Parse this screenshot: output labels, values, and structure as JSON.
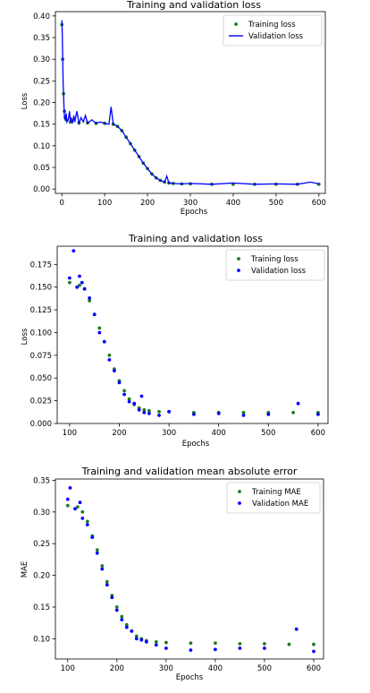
{
  "colors": {
    "training": "#1f7a1f",
    "validation": "#0000ff",
    "axes": "#000000",
    "legend_border": "#cccccc"
  },
  "chart_data": [
    {
      "type": "line",
      "title": "Training and validation loss",
      "xlabel": "Epochs",
      "ylabel": "Loss",
      "xlim": [
        -15,
        615
      ],
      "ylim": [
        -0.01,
        0.41
      ],
      "xticks": [
        0,
        100,
        200,
        300,
        400,
        500,
        600
      ],
      "yticks": [
        0.0,
        0.05,
        0.1,
        0.15,
        0.2,
        0.25,
        0.3,
        0.35,
        0.4
      ],
      "ytick_labels": [
        "0.00",
        "0.05",
        "0.10",
        "0.15",
        "0.20",
        "0.25",
        "0.30",
        "0.35",
        "0.40"
      ],
      "legend": "top-right",
      "series": [
        {
          "name": "Training loss",
          "marker": "dot",
          "color": "#1f7a1f",
          "x": [
            0,
            2,
            4,
            6,
            8,
            10,
            20,
            40,
            60,
            80,
            100,
            120,
            130,
            140,
            150,
            160,
            170,
            180,
            190,
            200,
            210,
            220,
            230,
            240,
            250,
            260,
            280,
            300,
            350,
            400,
            450,
            500,
            550,
            600
          ],
          "y": [
            0.38,
            0.3,
            0.22,
            0.18,
            0.165,
            0.16,
            0.155,
            0.153,
            0.153,
            0.152,
            0.152,
            0.15,
            0.145,
            0.135,
            0.12,
            0.105,
            0.09,
            0.075,
            0.06,
            0.047,
            0.035,
            0.026,
            0.02,
            0.016,
            0.014,
            0.013,
            0.012,
            0.012,
            0.011,
            0.011,
            0.011,
            0.011,
            0.011,
            0.011
          ]
        },
        {
          "name": "Validation loss",
          "marker": "line",
          "color": "#0000ff",
          "x": [
            0,
            1,
            2,
            3,
            4,
            5,
            6,
            8,
            10,
            12,
            15,
            18,
            20,
            22,
            25,
            28,
            30,
            35,
            40,
            45,
            50,
            55,
            60,
            70,
            80,
            90,
            100,
            110,
            115,
            120,
            130,
            140,
            150,
            160,
            170,
            180,
            190,
            200,
            210,
            220,
            230,
            240,
            245,
            250,
            260,
            280,
            300,
            350,
            400,
            450,
            500,
            550,
            580,
            600
          ],
          "y": [
            0.39,
            0.36,
            0.31,
            0.25,
            0.22,
            0.19,
            0.17,
            0.16,
            0.175,
            0.155,
            0.16,
            0.18,
            0.155,
            0.165,
            0.152,
            0.17,
            0.155,
            0.18,
            0.152,
            0.165,
            0.155,
            0.17,
            0.152,
            0.16,
            0.152,
            0.155,
            0.152,
            0.15,
            0.19,
            0.15,
            0.145,
            0.135,
            0.12,
            0.105,
            0.09,
            0.075,
            0.06,
            0.047,
            0.035,
            0.026,
            0.02,
            0.016,
            0.03,
            0.014,
            0.013,
            0.012,
            0.013,
            0.011,
            0.014,
            0.011,
            0.012,
            0.011,
            0.016,
            0.012
          ]
        }
      ]
    },
    {
      "type": "scatter",
      "title": "Training and validation loss",
      "xlabel": "Epochs",
      "ylabel": "Loss",
      "xlim": [
        75,
        620
      ],
      "ylim": [
        0.0,
        0.195
      ],
      "xticks": [
        100,
        200,
        300,
        400,
        500,
        600
      ],
      "yticks": [
        0.0,
        0.025,
        0.05,
        0.075,
        0.1,
        0.125,
        0.15,
        0.175
      ],
      "ytick_labels": [
        "0.000",
        "0.025",
        "0.050",
        "0.075",
        "0.100",
        "0.125",
        "0.150",
        "0.175"
      ],
      "legend": "top-right",
      "series": [
        {
          "name": "Training loss",
          "color": "#1f7a1f",
          "x": [
            100,
            120,
            130,
            140,
            150,
            160,
            170,
            180,
            190,
            200,
            210,
            220,
            230,
            240,
            250,
            260,
            280,
            300,
            350,
            400,
            450,
            500,
            550,
            600
          ],
          "y": [
            0.155,
            0.152,
            0.148,
            0.135,
            0.12,
            0.105,
            0.09,
            0.075,
            0.06,
            0.047,
            0.036,
            0.027,
            0.021,
            0.017,
            0.015,
            0.014,
            0.013,
            0.013,
            0.012,
            0.012,
            0.012,
            0.012,
            0.012,
            0.012
          ]
        },
        {
          "name": "Validation loss",
          "color": "#0000ff",
          "x": [
            100,
            108,
            115,
            120,
            125,
            130,
            140,
            150,
            160,
            170,
            180,
            190,
            200,
            210,
            220,
            230,
            240,
            245,
            250,
            260,
            280,
            300,
            350,
            400,
            450,
            500,
            560,
            600
          ],
          "y": [
            0.16,
            0.19,
            0.15,
            0.162,
            0.155,
            0.148,
            0.138,
            0.12,
            0.1,
            0.09,
            0.07,
            0.058,
            0.045,
            0.032,
            0.024,
            0.022,
            0.015,
            0.03,
            0.012,
            0.011,
            0.009,
            0.013,
            0.01,
            0.011,
            0.009,
            0.01,
            0.022,
            0.01
          ]
        }
      ]
    },
    {
      "type": "scatter",
      "title": "Training and validation mean absolute error",
      "xlabel": "Epochs",
      "ylabel": "MAE",
      "xlim": [
        75,
        620
      ],
      "ylim": [
        0.068,
        0.352
      ],
      "xticks": [
        100,
        200,
        300,
        400,
        500,
        600
      ],
      "yticks": [
        0.1,
        0.15,
        0.2,
        0.25,
        0.3,
        0.35
      ],
      "ytick_labels": [
        "0.10",
        "0.15",
        "0.20",
        "0.25",
        "0.30",
        "0.35"
      ],
      "legend": "top-right",
      "series": [
        {
          "name": "Training MAE",
          "color": "#1f7a1f",
          "x": [
            100,
            120,
            130,
            140,
            150,
            160,
            170,
            180,
            190,
            200,
            210,
            220,
            230,
            240,
            250,
            260,
            280,
            300,
            350,
            400,
            450,
            500,
            550,
            600
          ],
          "y": [
            0.31,
            0.308,
            0.3,
            0.285,
            0.262,
            0.24,
            0.215,
            0.19,
            0.168,
            0.15,
            0.135,
            0.122,
            0.112,
            0.104,
            0.1,
            0.097,
            0.095,
            0.094,
            0.093,
            0.093,
            0.092,
            0.092,
            0.091,
            0.091
          ]
        },
        {
          "name": "Validation MAE",
          "color": "#0000ff",
          "x": [
            100,
            105,
            115,
            125,
            130,
            140,
            150,
            160,
            170,
            180,
            190,
            200,
            210,
            220,
            230,
            240,
            250,
            260,
            280,
            300,
            350,
            400,
            450,
            500,
            565,
            600
          ],
          "y": [
            0.32,
            0.338,
            0.305,
            0.315,
            0.29,
            0.28,
            0.26,
            0.235,
            0.21,
            0.185,
            0.165,
            0.145,
            0.13,
            0.118,
            0.112,
            0.1,
            0.098,
            0.095,
            0.09,
            0.085,
            0.082,
            0.083,
            0.085,
            0.085,
            0.115,
            0.08
          ]
        }
      ]
    }
  ]
}
